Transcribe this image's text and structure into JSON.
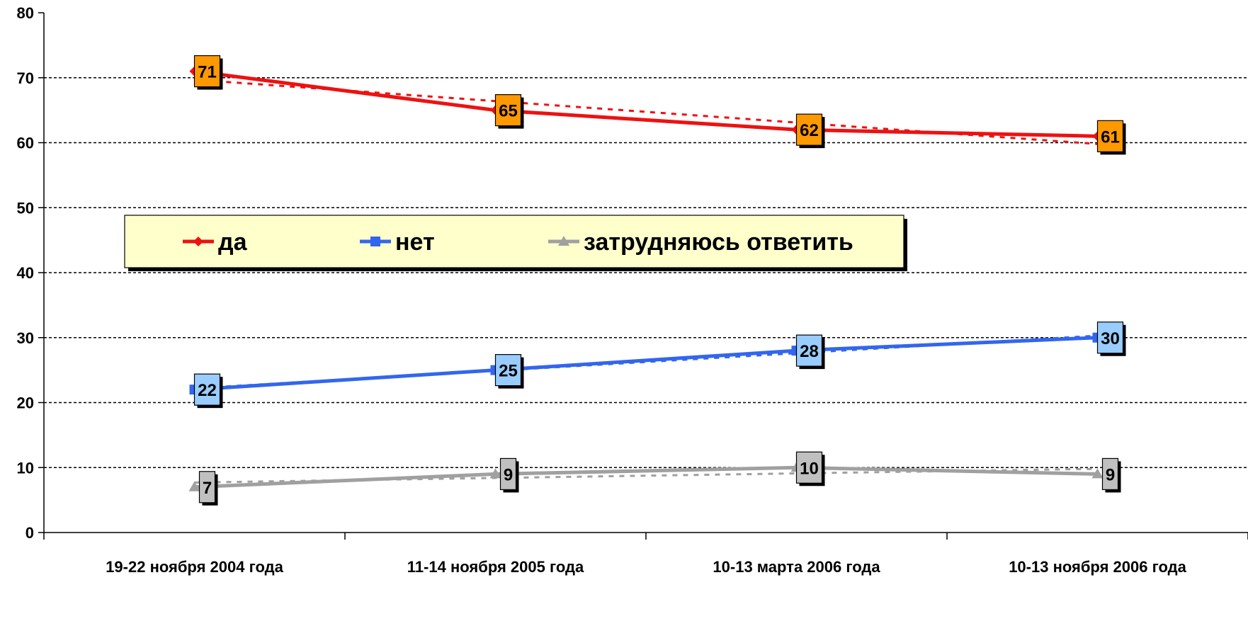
{
  "chart_data": {
    "type": "line",
    "categories": [
      "19-22 ноября 2004 года",
      "11-14 ноября 2005 года",
      "10-13 марта 2006 года",
      "10-13 ноября 2006 года"
    ],
    "ylim": [
      0,
      80
    ],
    "yticks": [
      0,
      10,
      20,
      30,
      40,
      50,
      60,
      70,
      80
    ],
    "grid": true,
    "legend_position": "center",
    "series": [
      {
        "name": "да",
        "values": [
          71,
          65,
          62,
          61
        ],
        "color": "#ee1111",
        "label_color": "#ff9900",
        "marker": "diamond",
        "trendline": true
      },
      {
        "name": "нет",
        "values": [
          22,
          25,
          28,
          30
        ],
        "color": "#3366ee",
        "label_color": "#99ccff",
        "marker": "square",
        "trendline": true
      },
      {
        "name": "затрудняюсь ответить",
        "values": [
          7,
          9,
          10,
          9
        ],
        "color": "#a0a0a0",
        "label_color": "#c0c0c0",
        "marker": "triangle",
        "trendline": true
      }
    ],
    "legend_background": "#ffffcc"
  }
}
